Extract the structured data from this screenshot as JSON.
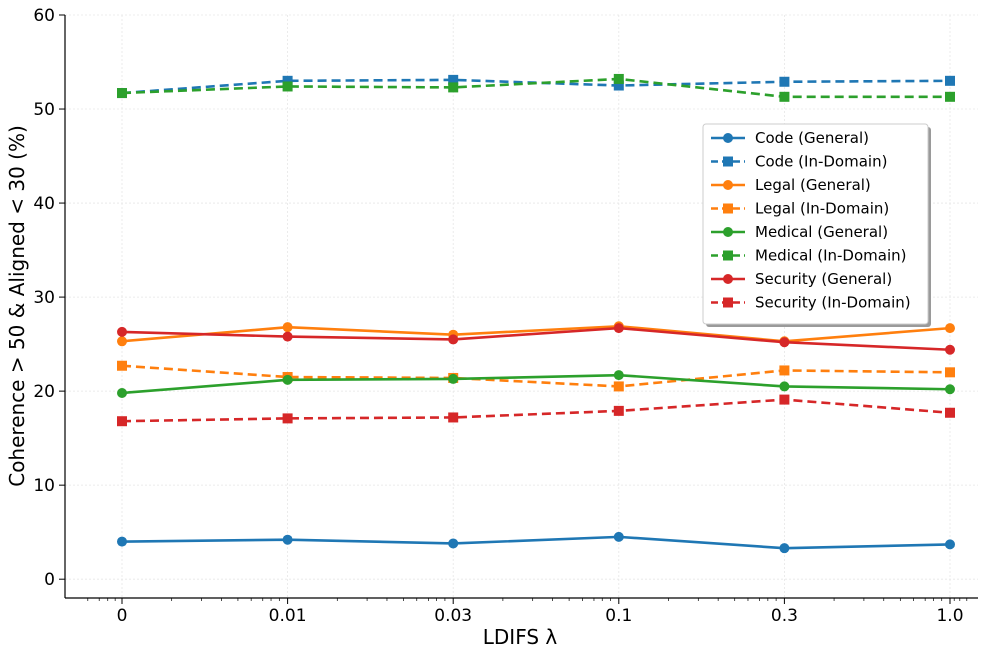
{
  "chart_data": {
    "type": "line",
    "title": "",
    "xlabel": "LDIFS λ",
    "ylabel": "Coherence > 50 & Aligned < 30 (%)",
    "categories": [
      "0",
      "0.01",
      "0.03",
      "0.1",
      "0.3",
      "1.0"
    ],
    "ylim": [
      -2,
      60
    ],
    "yticks": [
      0,
      10,
      20,
      30,
      40,
      50,
      60
    ],
    "grid": true,
    "legend_position": "center-right",
    "series": [
      {
        "name": "Code (General)",
        "color": "#1f77b4",
        "style": "solid",
        "marker": "circle",
        "values": [
          4.0,
          4.2,
          3.8,
          4.5,
          3.3,
          3.7
        ]
      },
      {
        "name": "Code (In-Domain)",
        "color": "#1f77b4",
        "style": "dashed",
        "marker": "square",
        "values": [
          51.7,
          53.0,
          53.1,
          52.5,
          52.9,
          53.0
        ]
      },
      {
        "name": "Legal (General)",
        "color": "#ff7f0e",
        "style": "solid",
        "marker": "circle",
        "values": [
          25.3,
          26.8,
          26.0,
          26.9,
          25.3,
          26.7
        ]
      },
      {
        "name": "Legal (In-Domain)",
        "color": "#ff7f0e",
        "style": "dashed",
        "marker": "square",
        "values": [
          22.7,
          21.5,
          21.4,
          20.5,
          22.2,
          22.0
        ]
      },
      {
        "name": "Medical (General)",
        "color": "#2ca02c",
        "style": "solid",
        "marker": "circle",
        "values": [
          19.8,
          21.2,
          21.3,
          21.7,
          20.5,
          20.2
        ]
      },
      {
        "name": "Medical (In-Domain)",
        "color": "#2ca02c",
        "style": "dashed",
        "marker": "square",
        "values": [
          51.7,
          52.4,
          52.3,
          53.2,
          51.3,
          51.3
        ]
      },
      {
        "name": "Security (General)",
        "color": "#d62728",
        "style": "solid",
        "marker": "circle",
        "values": [
          26.3,
          25.8,
          25.5,
          26.7,
          25.2,
          24.4
        ]
      },
      {
        "name": "Security (In-Domain)",
        "color": "#d62728",
        "style": "dashed",
        "marker": "square",
        "values": [
          16.8,
          17.1,
          17.2,
          17.9,
          19.1,
          17.7
        ]
      }
    ]
  }
}
